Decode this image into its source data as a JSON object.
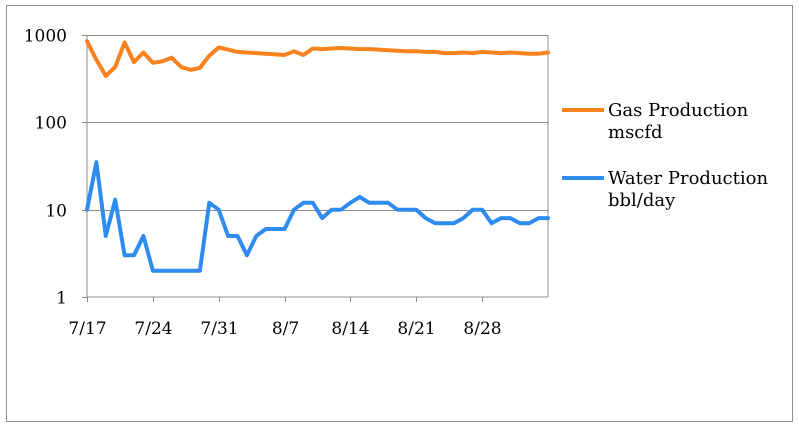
{
  "chart_data": {
    "type": "line",
    "title": "",
    "xlabel": "",
    "ylabel": "",
    "y_scale": "log",
    "ylim": [
      1,
      1000
    ],
    "y_ticks": [
      1,
      10,
      100,
      1000
    ],
    "y_tick_labels": [
      "1",
      "10",
      "100",
      "1000"
    ],
    "x_range": [
      "7/17",
      "9/4"
    ],
    "x_tick_labels": [
      "7/17",
      "7/24",
      "7/31",
      "8/7",
      "8/14",
      "8/21",
      "8/28"
    ],
    "grid": "horizontal",
    "legend_position": "right",
    "series": [
      {
        "name": "Gas Production mscfd",
        "legend_lines": [
          "Gas Production",
          "mscfd"
        ],
        "color": "#F7821E",
        "x": [
          "7/17",
          "7/18",
          "7/19",
          "7/20",
          "7/21",
          "7/22",
          "7/23",
          "7/24",
          "7/25",
          "7/26",
          "7/27",
          "7/28",
          "7/29",
          "7/30",
          "7/31",
          "8/1",
          "8/2",
          "8/3",
          "8/4",
          "8/5",
          "8/6",
          "8/7",
          "8/8",
          "8/9",
          "8/10",
          "8/11",
          "8/12",
          "8/13",
          "8/14",
          "8/15",
          "8/16",
          "8/17",
          "8/18",
          "8/19",
          "8/20",
          "8/21",
          "8/22",
          "8/23",
          "8/24",
          "8/25",
          "8/26",
          "8/27",
          "8/28",
          "8/29",
          "8/30",
          "8/31",
          "9/1",
          "9/2",
          "9/3",
          "9/4"
        ],
        "values": [
          850,
          520,
          340,
          430,
          820,
          490,
          630,
          480,
          500,
          550,
          430,
          400,
          420,
          580,
          720,
          680,
          640,
          630,
          620,
          610,
          600,
          590,
          650,
          590,
          700,
          690,
          700,
          710,
          700,
          690,
          690,
          680,
          670,
          660,
          650,
          650,
          640,
          640,
          620,
          620,
          630,
          620,
          640,
          630,
          620,
          630,
          620,
          610,
          610,
          630
        ]
      },
      {
        "name": "Water Production bbl/day",
        "legend_lines": [
          "Water Production",
          "bbl/day"
        ],
        "color": "#2E8CF0",
        "x": [
          "7/17",
          "7/18",
          "7/19",
          "7/20",
          "7/21",
          "7/22",
          "7/23",
          "7/24",
          "7/25",
          "7/26",
          "7/27",
          "7/28",
          "7/29",
          "7/30",
          "7/31",
          "8/1",
          "8/2",
          "8/3",
          "8/4",
          "8/5",
          "8/6",
          "8/7",
          "8/8",
          "8/9",
          "8/10",
          "8/11",
          "8/12",
          "8/13",
          "8/14",
          "8/15",
          "8/16",
          "8/17",
          "8/18",
          "8/19",
          "8/20",
          "8/21",
          "8/22",
          "8/23",
          "8/24",
          "8/25",
          "8/26",
          "8/27",
          "8/28",
          "8/29",
          "8/30",
          "8/31",
          "9/1",
          "9/2",
          "9/3",
          "9/4"
        ],
        "values": [
          10,
          35,
          5,
          13,
          3,
          3,
          5,
          2,
          2,
          2,
          2,
          2,
          2,
          12,
          10,
          5,
          5,
          3,
          5,
          6,
          6,
          6,
          10,
          12,
          12,
          8,
          10,
          10,
          12,
          14,
          12,
          12,
          12,
          10,
          10,
          10,
          8,
          7,
          7,
          7,
          8,
          10,
          10,
          7,
          8,
          8,
          7,
          7,
          8,
          8
        ]
      }
    ]
  }
}
